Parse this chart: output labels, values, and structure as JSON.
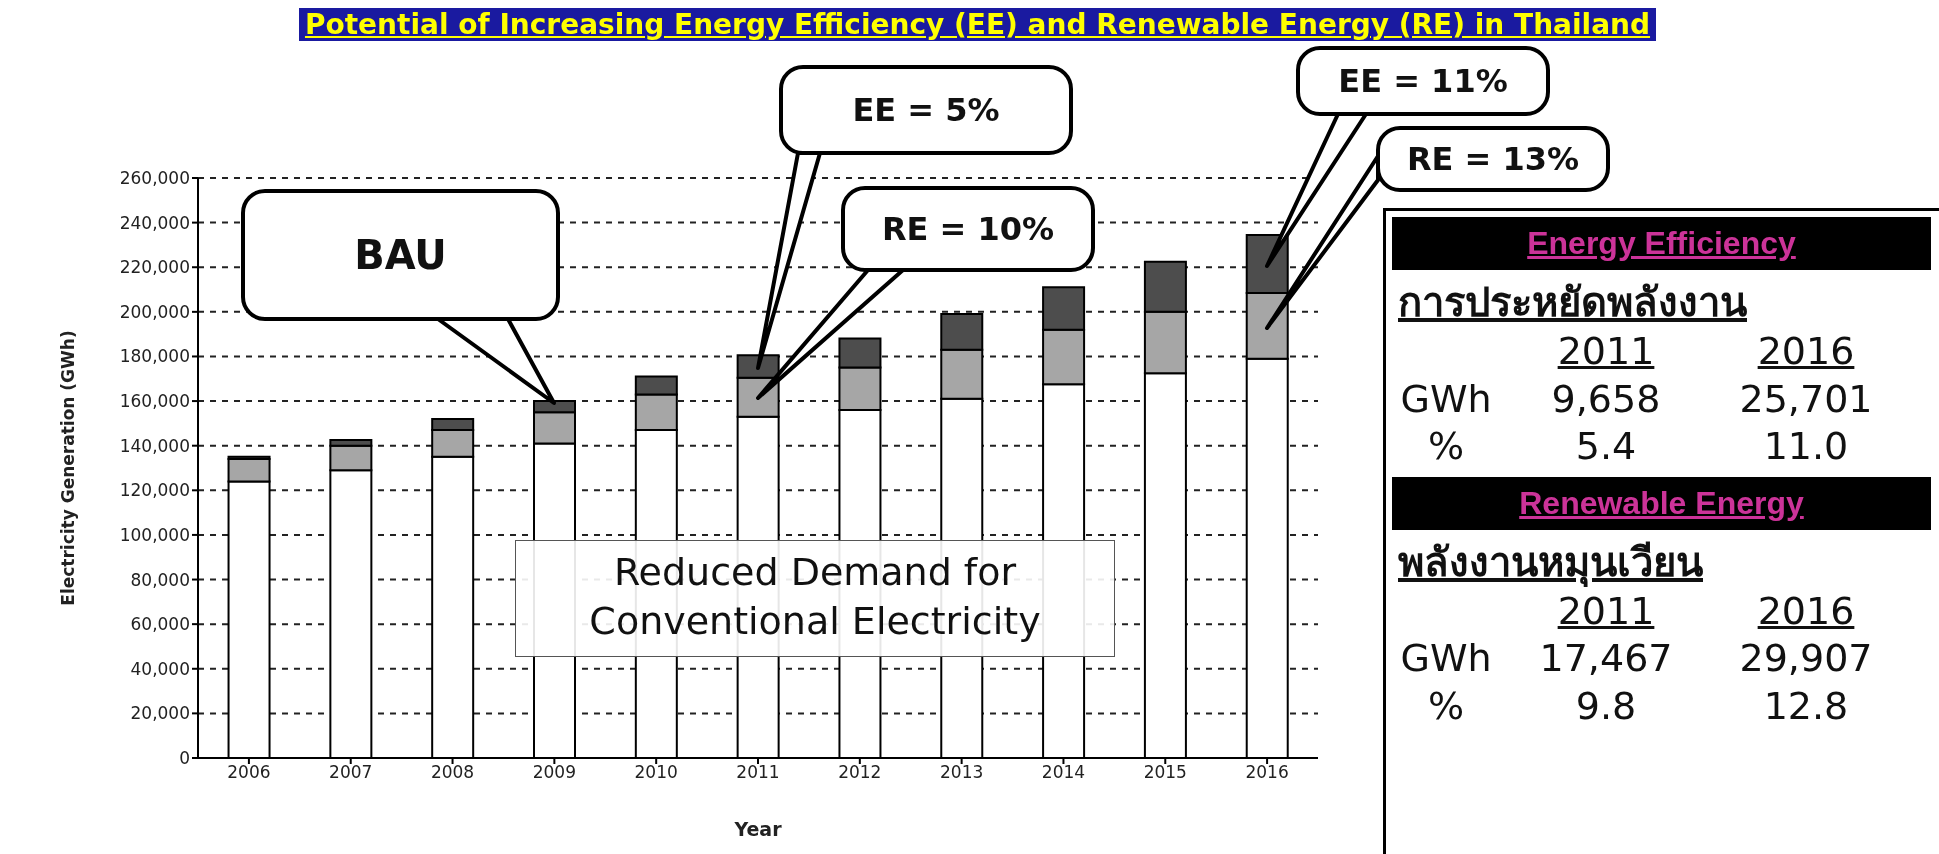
{
  "chart_data": [
    {
      "type": "bar",
      "title": "Potential of Increasing Energy Efficiency (EE) and Renewable Energy (RE) in Thailand",
      "xlabel": "Year",
      "ylabel": "Electricity Generation (GWh)",
      "categories": [
        "2006",
        "2007",
        "2008",
        "2009",
        "2010",
        "2011",
        "2012",
        "2013",
        "2014",
        "2015",
        "2016"
      ],
      "stacked": true,
      "series": [
        {
          "color": "#ffffff",
          "values": [
            124000,
            129000,
            135000,
            141000,
            147000,
            153000,
            156000,
            161000,
            167500,
            172500,
            179000
          ]
        },
        {
          "color": "#a6a6a6",
          "values": [
            10000,
            11000,
            12000,
            14000,
            16000,
            17500,
            19000,
            22000,
            24500,
            27500,
            29500
          ]
        },
        {
          "color": "#4d4d4d",
          "values": [
            1000,
            2500,
            5000,
            5000,
            8000,
            10000,
            13000,
            16000,
            19000,
            22500,
            26000
          ]
        }
      ],
      "ylim": [
        0,
        260000
      ],
      "yticks": [
        0,
        {
          "value": 20000,
          "label": "20,000"
        },
        {
          "value": 40000,
          "label": "40,000"
        },
        {
          "value": 60000,
          "label": "60,000"
        },
        {
          "value": 80000,
          "label": "80,000"
        },
        {
          "value": 100000,
          "label": "100,000"
        },
        {
          "value": 120000,
          "label": "120,000"
        },
        {
          "value": 140000,
          "label": "140,000"
        },
        {
          "value": 160000,
          "label": "160,000"
        },
        {
          "value": 180000,
          "label": "180,000"
        },
        {
          "value": 200000,
          "label": "200,000"
        },
        {
          "value": 220000,
          "label": "220,000"
        },
        {
          "value": 240000,
          "label": "240,000"
        },
        {
          "value": 260000,
          "label": "260,000"
        }
      ],
      "grid": "y",
      "annotations": [
        "BAU",
        "EE = 5%",
        "RE = 10%",
        "EE = 11%",
        "RE = 13%",
        "Reduced Demand for Conventional Electricity"
      ]
    },
    {
      "type": "other",
      "annotations": [
        "Energy Efficiency",
        "การประหยัดพลังงาน",
        "2011",
        "2016",
        "GWh",
        "9,658",
        "25,701",
        "%",
        "5.4",
        "11.0",
        "Renewable Energy",
        "พลังงานหมุนเวียน",
        "2011",
        "2016",
        "GWh",
        "17,467",
        "29,907",
        "%",
        "9.8",
        "12.8"
      ]
    }
  ]
}
